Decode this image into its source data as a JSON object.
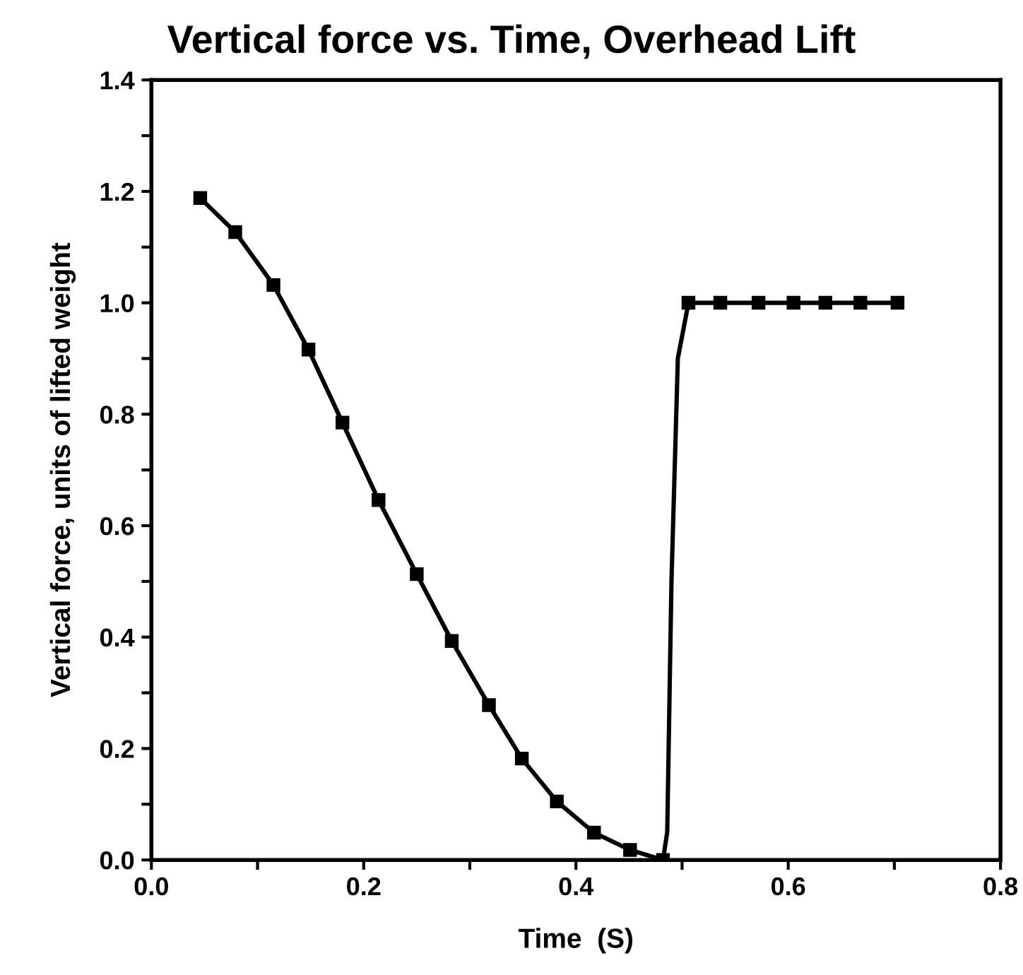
{
  "chart_data": {
    "type": "line",
    "title": "Vertical force vs. Time, Overhead Lift",
    "xlabel": "Time  (S)",
    "ylabel": "Vertical force, units of lifted weight",
    "series": [
      {
        "color": "#000000",
        "marker": "square",
        "x": [
          0.046,
          0.079,
          0.115,
          0.148,
          0.18,
          0.214,
          0.25,
          0.283,
          0.318,
          0.349,
          0.382,
          0.417,
          0.451,
          0.482
        ],
        "values": [
          1.188,
          1.127,
          1.032,
          0.916,
          0.785,
          0.646,
          0.513,
          0.393,
          0.278,
          0.182,
          0.105,
          0.049,
          0.018,
          0.0
        ]
      },
      {
        "color": "#000000",
        "marker": "none",
        "x": [
          0.482,
          0.486,
          0.49,
          0.496,
          0.506
        ],
        "values": [
          0.0,
          0.05,
          0.5,
          0.9,
          1.0
        ]
      },
      {
        "color": "#000000",
        "marker": "square",
        "x": [
          0.506,
          0.536,
          0.572,
          0.605,
          0.635,
          0.668,
          0.703
        ],
        "values": [
          1.0,
          1.0,
          1.0,
          1.0,
          1.0,
          1.0,
          1.0
        ]
      }
    ],
    "xlim": [
      0,
      0.8
    ],
    "ylim": [
      0,
      1.4
    ],
    "xticks": [
      {
        "value": 0,
        "label": "0.0"
      },
      {
        "value": 0.1,
        "label": null
      },
      {
        "value": 0.2,
        "label": "0.2"
      },
      {
        "value": 0.3,
        "label": null
      },
      {
        "value": 0.4,
        "label": "0.4"
      },
      {
        "value": 0.5,
        "label": null
      },
      {
        "value": 0.6,
        "label": "0.6"
      },
      {
        "value": 0.7,
        "label": null
      },
      {
        "value": 0.8,
        "label": "0.8"
      }
    ],
    "yticks": [
      {
        "value": 0,
        "label": "0.0"
      },
      {
        "value": 0.1,
        "label": null
      },
      {
        "value": 0.2,
        "label": "0.2"
      },
      {
        "value": 0.3,
        "label": null
      },
      {
        "value": 0.4,
        "label": "0.4"
      },
      {
        "value": 0.5,
        "label": null
      },
      {
        "value": 0.6,
        "label": "0.6"
      },
      {
        "value": 0.7,
        "label": null
      },
      {
        "value": 0.8,
        "label": "0.8"
      },
      {
        "value": 0.9,
        "label": null
      },
      {
        "value": 1,
        "label": "1.0"
      },
      {
        "value": 1.1,
        "label": null
      },
      {
        "value": 1.2,
        "label": "1.2"
      },
      {
        "value": 1.3,
        "label": null
      },
      {
        "value": 1.4,
        "label": "1.4"
      }
    ],
    "grid": false,
    "legend": false
  }
}
